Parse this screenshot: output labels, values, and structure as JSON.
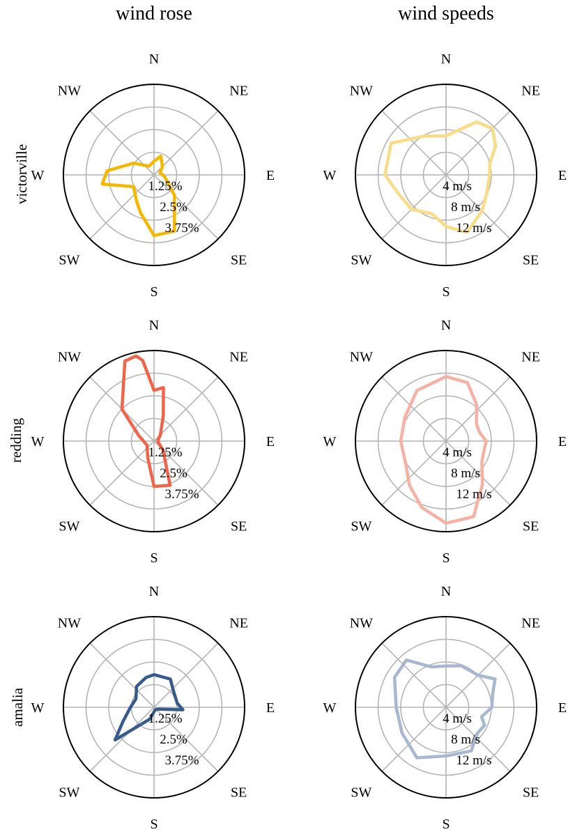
{
  "columns": [
    "wind rose",
    "wind speeds"
  ],
  "rows": [
    "victorville",
    "redding",
    "amalia"
  ],
  "compass_labels": [
    "N",
    "NE",
    "E",
    "SE",
    "S",
    "SW",
    "W",
    "NW"
  ],
  "colors": {
    "victorville": "#f5b700",
    "redding": "#f0654a",
    "amalia": "#365a8c",
    "victorville_light": "#f9dc85",
    "redding_light": "#f7b1a4",
    "amalia_light": "#a7b7d1",
    "grid": "#b4b4b4",
    "frame": "#000000"
  },
  "chart_data": [
    {
      "type": "polar-line",
      "title": "wind rose",
      "row": "victorville",
      "r_max": 5,
      "r_ticks": [
        1.25,
        2.5,
        3.75
      ],
      "r_tick_labels": [
        "1.25%",
        "2.5%",
        "3.75%"
      ],
      "series": [
        {
          "values": [
            [
              0,
              0.75
            ],
            [
              20,
              1.1
            ],
            [
              45,
              0.65
            ],
            [
              70,
              0.35
            ],
            [
              100,
              0.6
            ],
            [
              135,
              1.6
            ],
            [
              160,
              3.3
            ],
            [
              180,
              3.35
            ],
            [
              200,
              2.2
            ],
            [
              215,
              1.7
            ],
            [
              240,
              1.3
            ],
            [
              260,
              2.9
            ],
            [
              275,
              2.6
            ],
            [
              300,
              1.3
            ],
            [
              330,
              0.55
            ]
          ]
        }
      ]
    },
    {
      "type": "polar-line",
      "title": "wind speeds",
      "row": "victorville",
      "r_max": 16,
      "r_ticks": [
        4,
        8,
        12
      ],
      "r_tick_labels": [
        "4 m/s",
        "8 m/s",
        "12 m/s"
      ],
      "series": [
        {
          "values": [
            [
              0,
              6.9
            ],
            [
              30,
              10.8
            ],
            [
              45,
              11.6
            ],
            [
              60,
              10.1
            ],
            [
              75,
              8.0
            ],
            [
              90,
              7.7
            ],
            [
              115,
              7.9
            ],
            [
              135,
              9.0
            ],
            [
              160,
              10.8
            ],
            [
              180,
              9.1
            ],
            [
              200,
              7.3
            ],
            [
              225,
              8.6
            ],
            [
              250,
              9.1
            ],
            [
              270,
              10.8
            ],
            [
              300,
              11.2
            ],
            [
              330,
              7.9
            ]
          ]
        }
      ]
    },
    {
      "type": "polar-line",
      "title": "wind rose",
      "row": "redding",
      "r_max": 5,
      "r_ticks": [
        1.25,
        2.5,
        3.75
      ],
      "r_tick_labels": [
        "1.25%",
        "2.5%",
        "3.75%"
      ],
      "series": [
        {
          "values": [
            [
              0,
              2.8
            ],
            [
              10,
              3.0
            ],
            [
              20,
              1.5
            ],
            [
              45,
              0.5
            ],
            [
              90,
              0.2
            ],
            [
              135,
              0.7
            ],
            [
              160,
              2.6
            ],
            [
              180,
              2.5
            ],
            [
              200,
              1.0
            ],
            [
              240,
              0.45
            ],
            [
              290,
              0.9
            ],
            [
              315,
              2.5
            ],
            [
              340,
              4.7
            ],
            [
              348,
              4.8
            ],
            [
              352,
              4.5
            ]
          ]
        }
      ]
    },
    {
      "type": "polar-line",
      "title": "wind speeds",
      "row": "redding",
      "r_max": 16,
      "r_ticks": [
        4,
        8,
        12
      ],
      "r_tick_labels": [
        "4 m/s",
        "8 m/s",
        "12 m/s"
      ],
      "series": [
        {
          "values": [
            [
              0,
              11.4
            ],
            [
              20,
              11.0
            ],
            [
              40,
              8.4
            ],
            [
              60,
              6.2
            ],
            [
              75,
              6.1
            ],
            [
              90,
              7.1
            ],
            [
              105,
              6.9
            ],
            [
              120,
              7.3
            ],
            [
              140,
              10.0
            ],
            [
              160,
              14.2
            ],
            [
              180,
              14.5
            ],
            [
              200,
              12.5
            ],
            [
              220,
              10.1
            ],
            [
              240,
              8.2
            ],
            [
              270,
              8.0
            ],
            [
              300,
              8.4
            ],
            [
              330,
              10.3
            ]
          ]
        }
      ]
    },
    {
      "type": "polar-line",
      "title": "wind rose",
      "row": "amalia",
      "r_max": 5,
      "r_ticks": [
        1.25,
        2.5,
        3.75
      ],
      "r_tick_labels": [
        "1.25%",
        "2.5%",
        "3.75%"
      ],
      "series": [
        {
          "values": [
            [
              0,
              1.8
            ],
            [
              30,
              1.8
            ],
            [
              50,
              1.4
            ],
            [
              80,
              1.3
            ],
            [
              95,
              1.6
            ],
            [
              110,
              0.3
            ],
            [
              150,
              0.15
            ],
            [
              200,
              0.7
            ],
            [
              230,
              2.8
            ],
            [
              245,
              1.9
            ],
            [
              270,
              1.3
            ],
            [
              295,
              1.1
            ],
            [
              320,
              1.5
            ],
            [
              345,
              1.7
            ]
          ]
        }
      ]
    },
    {
      "type": "polar-line",
      "title": "wind speeds",
      "row": "amalia",
      "r_max": 16,
      "r_ticks": [
        4,
        8,
        12
      ],
      "r_tick_labels": [
        "4 m/s",
        "8 m/s",
        "12 m/s"
      ],
      "series": [
        {
          "values": [
            [
              0,
              7.3
            ],
            [
              20,
              7.8
            ],
            [
              45,
              8.0
            ],
            [
              60,
              10.0
            ],
            [
              75,
              8.5
            ],
            [
              90,
              8.1
            ],
            [
              105,
              6.5
            ],
            [
              115,
              7.5
            ],
            [
              130,
              7.2
            ],
            [
              150,
              8.9
            ],
            [
              180,
              8.6
            ],
            [
              210,
              10.3
            ],
            [
              240,
              9.0
            ],
            [
              270,
              8.8
            ],
            [
              300,
              10.5
            ],
            [
              320,
              10.9
            ],
            [
              340,
              7.6
            ]
          ]
        }
      ]
    }
  ]
}
